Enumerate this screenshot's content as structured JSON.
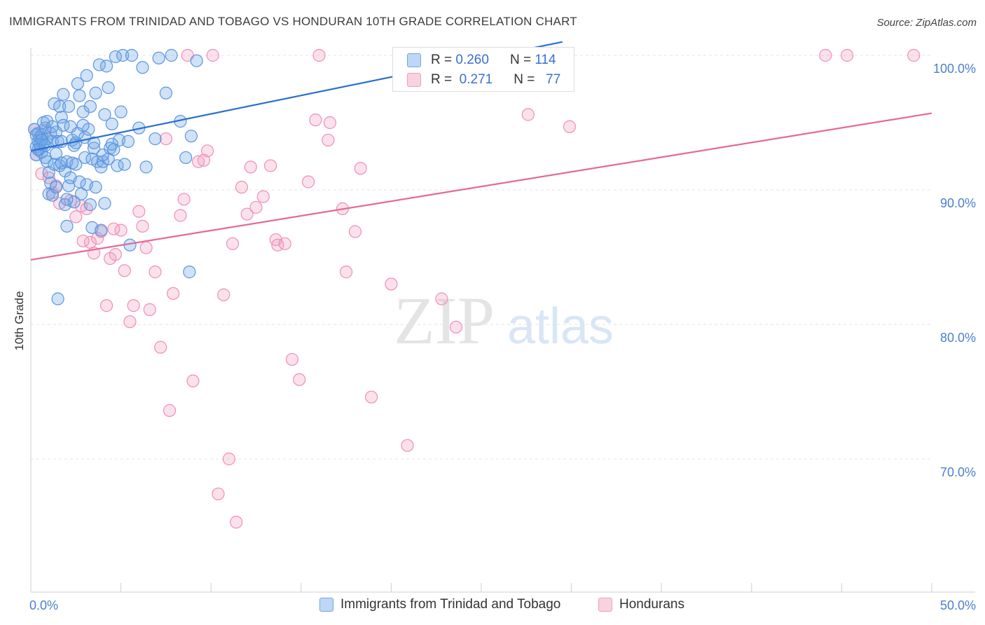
{
  "title": "IMMIGRANTS FROM TRINIDAD AND TOBAGO VS HONDURAN 10TH GRADE CORRELATION CHART",
  "source": "Source: ZipAtlas.com",
  "watermark": {
    "zip": "ZIP",
    "atlas": "atlas"
  },
  "colors": {
    "blue": "#6fa6e8",
    "blue_line": "#2a6fd0",
    "pink": "#f29cbc",
    "pink_line": "#e36a96",
    "tick_label": "#4a7fd0"
  },
  "legend": {
    "rows": [
      {
        "r_label": "R =",
        "r_value": "0.260",
        "n_label": "N =",
        "n_value": "114"
      },
      {
        "r_label": "R =",
        "r_value": "0.271",
        "n_label": "N =",
        "n_value": "77"
      }
    ]
  },
  "series_labels": [
    "Immigrants from Trinidad and Tobago",
    "Hondurans"
  ],
  "chart_data": {
    "type": "scatter",
    "xlabel": "",
    "ylabel": "10th Grade",
    "xlim": [
      0,
      50
    ],
    "ylim": [
      62,
      102
    ],
    "x_tick_labels": [
      "0.0%",
      "50.0%"
    ],
    "y_ticks": [
      70,
      80,
      90,
      100
    ],
    "y_tick_labels": [
      "70.0%",
      "80.0%",
      "90.0%",
      "100.0%"
    ],
    "grid": true,
    "legend_placement": "top-center",
    "series": [
      {
        "name": "Immigrants from Trinidad and Tobago",
        "r": 0.26,
        "n": 114,
        "trend": {
          "x": [
            0,
            29.5
          ],
          "y": [
            92.9,
            101.0
          ]
        },
        "points": [
          [
            0.2,
            94.5
          ],
          [
            0.3,
            93.2
          ],
          [
            0.3,
            92.6
          ],
          [
            0.4,
            93.6
          ],
          [
            0.4,
            94.2
          ],
          [
            0.5,
            93.9
          ],
          [
            0.5,
            93.0
          ],
          [
            0.6,
            92.8
          ],
          [
            0.6,
            94.1
          ],
          [
            0.7,
            93.4
          ],
          [
            0.7,
            95.0
          ],
          [
            0.8,
            94.6
          ],
          [
            0.8,
            92.4
          ],
          [
            0.9,
            93.8
          ],
          [
            0.9,
            92.1
          ],
          [
            1.0,
            91.3
          ],
          [
            1.0,
            89.7
          ],
          [
            1.1,
            90.5
          ],
          [
            1.1,
            94.2
          ],
          [
            1.2,
            93.6
          ],
          [
            1.2,
            89.6
          ],
          [
            1.3,
            91.9
          ],
          [
            1.3,
            96.4
          ],
          [
            1.4,
            94.3
          ],
          [
            1.4,
            90.2
          ],
          [
            1.5,
            93.6
          ],
          [
            1.5,
            81.9
          ],
          [
            1.6,
            96.2
          ],
          [
            1.6,
            91.8
          ],
          [
            1.7,
            95.4
          ],
          [
            1.7,
            92.0
          ],
          [
            1.8,
            94.8
          ],
          [
            1.8,
            97.1
          ],
          [
            1.9,
            91.4
          ],
          [
            1.9,
            88.9
          ],
          [
            2.0,
            92.1
          ],
          [
            2.0,
            87.3
          ],
          [
            2.1,
            96.2
          ],
          [
            2.1,
            90.3
          ],
          [
            2.2,
            94.7
          ],
          [
            2.2,
            90.9
          ],
          [
            2.3,
            93.7
          ],
          [
            2.3,
            92.0
          ],
          [
            2.4,
            89.1
          ],
          [
            2.5,
            91.9
          ],
          [
            2.5,
            93.5
          ],
          [
            2.6,
            97.9
          ],
          [
            2.6,
            94.2
          ],
          [
            2.7,
            97.0
          ],
          [
            2.7,
            90.6
          ],
          [
            2.8,
            89.7
          ],
          [
            2.9,
            95.8
          ],
          [
            3.0,
            93.9
          ],
          [
            3.0,
            92.4
          ],
          [
            3.1,
            98.5
          ],
          [
            3.1,
            90.4
          ],
          [
            3.2,
            94.5
          ],
          [
            3.3,
            96.2
          ],
          [
            3.3,
            88.9
          ],
          [
            3.4,
            92.3
          ],
          [
            3.4,
            87.2
          ],
          [
            3.5,
            93.1
          ],
          [
            3.6,
            97.2
          ],
          [
            3.6,
            90.2
          ],
          [
            3.7,
            92.1
          ],
          [
            3.8,
            99.3
          ],
          [
            3.9,
            91.7
          ],
          [
            3.9,
            87.0
          ],
          [
            4.0,
            92.1
          ],
          [
            4.1,
            95.6
          ],
          [
            4.1,
            89.0
          ],
          [
            4.2,
            99.2
          ],
          [
            4.3,
            97.6
          ],
          [
            4.3,
            92.3
          ],
          [
            4.4,
            93.1
          ],
          [
            4.5,
            94.9
          ],
          [
            4.6,
            93.0
          ],
          [
            4.7,
            99.9
          ],
          [
            4.8,
            91.8
          ],
          [
            4.9,
            93.7
          ],
          [
            5.0,
            95.8
          ],
          [
            5.1,
            100.0
          ],
          [
            5.2,
            91.9
          ],
          [
            5.4,
            93.6
          ],
          [
            5.5,
            85.9
          ],
          [
            5.6,
            100.0
          ],
          [
            6.0,
            94.6
          ],
          [
            6.2,
            99.1
          ],
          [
            6.4,
            91.7
          ],
          [
            6.9,
            93.8
          ],
          [
            7.1,
            99.8
          ],
          [
            7.5,
            97.2
          ],
          [
            7.8,
            100.0
          ],
          [
            8.3,
            95.1
          ],
          [
            8.6,
            92.4
          ],
          [
            8.8,
            83.9
          ],
          [
            8.9,
            94.0
          ],
          [
            9.2,
            99.6
          ],
          [
            0.3,
            94.1
          ],
          [
            0.5,
            93.4
          ],
          [
            0.6,
            93.7
          ],
          [
            0.9,
            95.1
          ],
          [
            1.4,
            92.7
          ],
          [
            1.7,
            93.6
          ],
          [
            2.0,
            89.3
          ],
          [
            2.4,
            93.3
          ],
          [
            2.9,
            94.8
          ],
          [
            3.5,
            93.5
          ],
          [
            4.0,
            92.6
          ],
          [
            4.5,
            93.4
          ],
          [
            0.4,
            93.0
          ],
          [
            0.8,
            93.3
          ],
          [
            1.2,
            94.7
          ],
          [
            28.9,
            99.9
          ]
        ]
      },
      {
        "name": "Hondurans",
        "r": 0.271,
        "n": 77,
        "trend": {
          "x": [
            0,
            50
          ],
          "y": [
            84.8,
            95.7
          ]
        },
        "points": [
          [
            0.2,
            94.5
          ],
          [
            0.3,
            92.6
          ],
          [
            0.6,
            91.2
          ],
          [
            0.8,
            94.4
          ],
          [
            1.0,
            90.9
          ],
          [
            1.2,
            89.8
          ],
          [
            1.4,
            90.3
          ],
          [
            1.6,
            89.0
          ],
          [
            2.2,
            89.2
          ],
          [
            2.5,
            88.0
          ],
          [
            2.8,
            88.8
          ],
          [
            3.1,
            88.6
          ],
          [
            3.3,
            86.1
          ],
          [
            3.5,
            85.3
          ],
          [
            3.7,
            86.4
          ],
          [
            3.9,
            86.9
          ],
          [
            4.2,
            81.4
          ],
          [
            4.4,
            84.9
          ],
          [
            4.7,
            85.2
          ],
          [
            5.0,
            87.0
          ],
          [
            5.2,
            84.0
          ],
          [
            5.5,
            80.2
          ],
          [
            5.7,
            81.4
          ],
          [
            6.0,
            88.4
          ],
          [
            6.2,
            87.3
          ],
          [
            6.4,
            85.7
          ],
          [
            6.6,
            81.1
          ],
          [
            6.9,
            83.9
          ],
          [
            7.2,
            78.3
          ],
          [
            7.5,
            93.8
          ],
          [
            7.7,
            73.6
          ],
          [
            7.9,
            82.3
          ],
          [
            8.3,
            88.1
          ],
          [
            8.5,
            89.3
          ],
          [
            8.7,
            100.0
          ],
          [
            9.0,
            75.8
          ],
          [
            9.3,
            92.1
          ],
          [
            9.6,
            92.2
          ],
          [
            9.8,
            92.9
          ],
          [
            10.1,
            100.0
          ],
          [
            10.4,
            67.4
          ],
          [
            10.7,
            82.2
          ],
          [
            11.0,
            70.0
          ],
          [
            11.4,
            65.3
          ],
          [
            11.7,
            90.2
          ],
          [
            12.0,
            88.2
          ],
          [
            12.2,
            91.7
          ],
          [
            12.5,
            88.7
          ],
          [
            12.9,
            89.5
          ],
          [
            13.3,
            91.8
          ],
          [
            13.6,
            86.3
          ],
          [
            13.7,
            85.9
          ],
          [
            14.1,
            86.0
          ],
          [
            14.5,
            77.4
          ],
          [
            14.9,
            75.9
          ],
          [
            15.4,
            90.6
          ],
          [
            15.8,
            95.2
          ],
          [
            16.0,
            100.0
          ],
          [
            16.5,
            93.7
          ],
          [
            16.6,
            95.0
          ],
          [
            17.3,
            88.6
          ],
          [
            17.5,
            83.9
          ],
          [
            18.0,
            86.9
          ],
          [
            18.3,
            91.6
          ],
          [
            18.9,
            74.6
          ],
          [
            20.0,
            83.0
          ],
          [
            20.9,
            71.0
          ],
          [
            22.8,
            81.9
          ],
          [
            23.6,
            79.8
          ],
          [
            27.6,
            95.6
          ],
          [
            29.9,
            94.7
          ],
          [
            44.1,
            100.0
          ],
          [
            45.3,
            100.0
          ],
          [
            49.0,
            100.0
          ],
          [
            11.2,
            86.0
          ],
          [
            2.9,
            86.2
          ],
          [
            4.6,
            87.1
          ]
        ]
      }
    ]
  }
}
